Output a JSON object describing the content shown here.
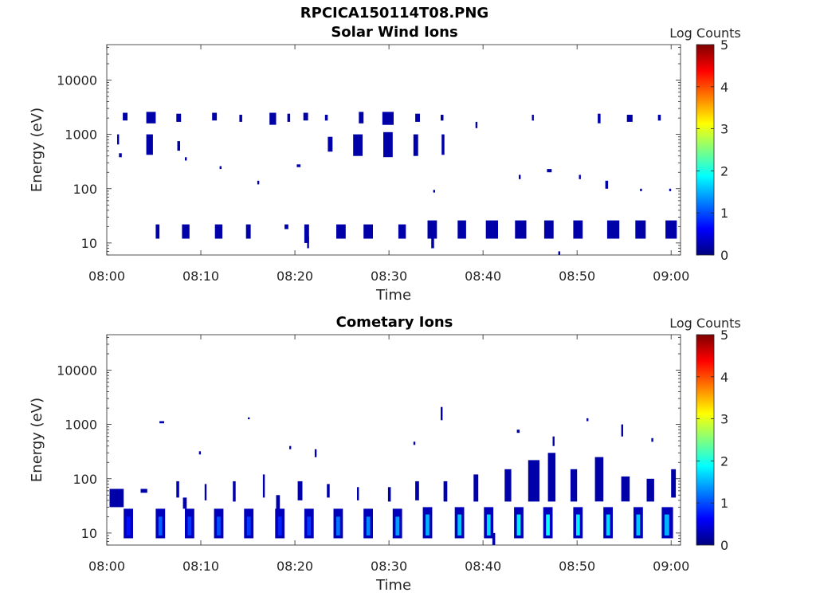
{
  "figure_title": "RPCICA150114T08.PNG",
  "colormap": [
    "#00007F",
    "#0000FF",
    "#007FFF",
    "#00FFFF",
    "#7FFF7F",
    "#FFFF00",
    "#FF7F00",
    "#FF0000",
    "#7F0000"
  ],
  "chart_data": [
    {
      "type": "heatmap",
      "title": "Solar Wind Ions",
      "xlabel": "Time",
      "ylabel": "Energy (eV)",
      "xlim": [
        "08:00",
        "09:01"
      ],
      "ylim": [
        6,
        45000
      ],
      "yscale": "log",
      "xticks": [
        "08:00",
        "08:10",
        "08:20",
        "08:30",
        "08:40",
        "08:50",
        "09:00"
      ],
      "yticks": [
        10,
        100,
        1000,
        10000
      ],
      "yticklabels": [
        "10",
        "100",
        "1000",
        "10000"
      ],
      "colorbar": {
        "label": "Log Counts",
        "range": [
          0,
          5
        ],
        "ticks": [
          "0",
          "1",
          "2",
          "3",
          "4",
          "5"
        ]
      },
      "cells": [
        [
          1.7,
          2.2,
          1800,
          2500,
          0.2
        ],
        [
          4.2,
          5.2,
          1600,
          2600,
          0.2
        ],
        [
          7.4,
          7.9,
          1700,
          2400,
          0.2
        ],
        [
          11.2,
          11.7,
          1800,
          2500,
          0.2
        ],
        [
          14.1,
          14.4,
          1700,
          2300,
          0.2
        ],
        [
          17.3,
          18.0,
          1500,
          2500,
          0.2
        ],
        [
          19.2,
          19.5,
          1700,
          2400,
          0.2
        ],
        [
          20.9,
          21.4,
          1800,
          2500,
          0.2
        ],
        [
          23.2,
          23.5,
          1800,
          2300,
          0.2
        ],
        [
          26.8,
          27.3,
          1600,
          2600,
          0.2
        ],
        [
          29.3,
          30.5,
          1500,
          2600,
          0.2
        ],
        [
          32.8,
          33.3,
          1700,
          2400,
          0.2
        ],
        [
          35.5,
          35.8,
          1800,
          2300,
          0.2
        ],
        [
          39.2,
          39.4,
          1300,
          1700,
          0.2
        ],
        [
          45.2,
          45.4,
          1800,
          2300,
          0.2
        ],
        [
          52.2,
          52.5,
          1600,
          2400,
          0.2
        ],
        [
          55.3,
          55.9,
          1700,
          2300,
          0.2
        ],
        [
          58.6,
          58.9,
          1800,
          2300,
          0.2
        ],
        [
          1.1,
          1.3,
          650,
          1000,
          0.2
        ],
        [
          4.2,
          4.9,
          420,
          1000,
          0.2
        ],
        [
          7.5,
          7.8,
          500,
          750,
          0.2
        ],
        [
          23.5,
          24.0,
          480,
          900,
          0.2
        ],
        [
          26.2,
          27.2,
          400,
          1000,
          0.2
        ],
        [
          29.4,
          30.4,
          380,
          1100,
          0.2
        ],
        [
          32.6,
          33.1,
          400,
          1000,
          0.2
        ],
        [
          35.6,
          35.9,
          420,
          1000,
          0.2
        ],
        [
          5.2,
          5.6,
          12,
          22,
          0.2
        ],
        [
          8.0,
          8.8,
          12,
          22,
          0.2
        ],
        [
          11.5,
          12.3,
          12,
          22,
          0.2
        ],
        [
          14.8,
          15.3,
          12,
          22,
          0.2
        ],
        [
          18.9,
          19.3,
          18,
          22,
          0.2
        ],
        [
          21.0,
          21.5,
          10,
          22,
          0.2
        ],
        [
          24.4,
          25.4,
          12,
          22,
          0.2
        ],
        [
          27.3,
          28.3,
          12,
          22,
          0.2
        ],
        [
          31.0,
          31.8,
          12,
          22,
          0.2
        ],
        [
          34.1,
          35.1,
          12,
          26,
          0.2
        ],
        [
          37.3,
          38.2,
          12,
          26,
          0.2
        ],
        [
          40.3,
          41.6,
          12,
          26,
          0.2
        ],
        [
          43.4,
          44.6,
          12,
          26,
          0.2
        ],
        [
          46.5,
          47.5,
          12,
          26,
          0.2
        ],
        [
          49.6,
          50.6,
          12,
          26,
          0.2
        ],
        [
          53.2,
          54.5,
          12,
          26,
          0.2
        ],
        [
          56.2,
          57.3,
          12,
          26,
          0.2
        ],
        [
          59.4,
          60.6,
          12,
          26,
          0.2
        ],
        [
          21.3,
          21.5,
          8,
          13,
          0.2
        ],
        [
          34.5,
          34.8,
          8,
          12,
          0.2
        ],
        [
          48.0,
          48.2,
          6,
          7,
          0.2
        ],
        [
          1.3,
          1.6,
          380,
          450,
          0.2
        ],
        [
          8.3,
          8.5,
          330,
          380,
          0.2
        ],
        [
          12.0,
          12.2,
          230,
          260,
          0.2
        ],
        [
          16.0,
          16.2,
          120,
          140,
          0.2
        ],
        [
          20.2,
          20.6,
          250,
          280,
          0.2
        ],
        [
          34.7,
          34.9,
          85,
          95,
          0.2
        ],
        [
          43.8,
          44.0,
          150,
          180,
          0.2
        ],
        [
          46.8,
          47.3,
          200,
          230,
          0.2
        ],
        [
          50.2,
          50.4,
          150,
          180,
          0.2
        ],
        [
          53.0,
          53.3,
          100,
          140,
          0.2
        ],
        [
          56.7,
          56.9,
          90,
          100,
          0.2
        ],
        [
          59.8,
          60.0,
          90,
          100,
          0.2
        ]
      ]
    },
    {
      "type": "heatmap",
      "title": "Cometary Ions",
      "xlabel": "Time",
      "ylabel": "Energy (eV)",
      "xlim": [
        "08:00",
        "09:01"
      ],
      "ylim": [
        6,
        45000
      ],
      "yscale": "log",
      "xticks": [
        "08:00",
        "08:10",
        "08:20",
        "08:30",
        "08:40",
        "08:50",
        "09:00"
      ],
      "yticks": [
        10,
        100,
        1000,
        10000
      ],
      "yticklabels": [
        "10",
        "100",
        "1000",
        "10000"
      ],
      "colorbar": {
        "label": "Log Counts",
        "range": [
          0,
          5
        ],
        "ticks": [
          "0",
          "1",
          "2",
          "3",
          "4",
          "5"
        ]
      },
      "cells": [
        [
          1.8,
          2.8,
          8,
          28,
          0.3
        ],
        [
          2.1,
          2.5,
          9,
          20,
          0.7
        ],
        [
          5.2,
          6.2,
          8,
          28,
          0.3
        ],
        [
          5.5,
          5.9,
          9,
          20,
          1.1
        ],
        [
          8.3,
          9.3,
          8,
          28,
          0.3
        ],
        [
          8.6,
          9.0,
          9,
          20,
          0.9
        ],
        [
          11.4,
          12.4,
          8,
          28,
          0.3
        ],
        [
          11.7,
          12.1,
          9,
          20,
          1.0
        ],
        [
          14.6,
          15.6,
          8,
          28,
          0.3
        ],
        [
          14.9,
          15.3,
          9,
          20,
          0.9
        ],
        [
          17.9,
          18.9,
          8,
          28,
          0.3
        ],
        [
          18.2,
          18.6,
          9,
          20,
          0.8
        ],
        [
          21.0,
          22.0,
          8,
          28,
          0.3
        ],
        [
          21.3,
          21.7,
          9,
          20,
          0.9
        ],
        [
          24.1,
          25.1,
          8,
          28,
          0.3
        ],
        [
          24.4,
          24.8,
          9,
          20,
          1.2
        ],
        [
          27.3,
          28.3,
          8,
          28,
          0.3
        ],
        [
          27.6,
          28.0,
          9,
          20,
          1.3
        ],
        [
          30.4,
          31.4,
          8,
          28,
          0.3
        ],
        [
          30.7,
          31.1,
          9,
          20,
          1.4
        ],
        [
          33.6,
          34.6,
          8,
          30,
          0.3
        ],
        [
          33.9,
          34.3,
          9,
          22,
          1.5
        ],
        [
          37.0,
          38.0,
          8,
          30,
          0.3
        ],
        [
          37.3,
          37.7,
          9,
          22,
          1.6
        ],
        [
          40.1,
          41.1,
          8,
          30,
          0.3
        ],
        [
          40.4,
          40.8,
          9,
          22,
          1.7
        ],
        [
          43.3,
          44.3,
          8,
          30,
          0.3
        ],
        [
          43.6,
          44.0,
          9,
          22,
          1.8
        ],
        [
          46.4,
          47.4,
          8,
          30,
          0.3
        ],
        [
          46.7,
          47.1,
          9,
          22,
          1.9
        ],
        [
          49.6,
          50.6,
          8,
          30,
          0.3
        ],
        [
          49.9,
          50.3,
          9,
          22,
          1.8
        ],
        [
          52.8,
          53.8,
          8,
          30,
          0.3
        ],
        [
          53.1,
          53.5,
          9,
          22,
          1.7
        ],
        [
          56.0,
          57.0,
          8,
          30,
          0.3
        ],
        [
          56.3,
          56.7,
          9,
          22,
          1.6
        ],
        [
          59.0,
          60.2,
          8,
          30,
          0.3
        ],
        [
          59.3,
          59.8,
          9,
          22,
          1.5
        ],
        [
          0.3,
          1.8,
          30,
          65,
          0.2
        ],
        [
          3.6,
          4.3,
          55,
          65,
          0.2
        ],
        [
          7.4,
          7.7,
          45,
          90,
          0.2
        ],
        [
          10.4,
          10.6,
          40,
          80,
          0.2
        ],
        [
          13.4,
          13.7,
          38,
          90,
          0.2
        ],
        [
          16.6,
          16.8,
          45,
          120,
          0.2
        ],
        [
          20.3,
          20.8,
          40,
          90,
          0.2
        ],
        [
          23.4,
          23.7,
          45,
          80,
          0.2
        ],
        [
          26.6,
          26.8,
          40,
          70,
          0.2
        ],
        [
          29.9,
          30.2,
          38,
          70,
          0.2
        ],
        [
          32.8,
          33.2,
          40,
          90,
          0.2
        ],
        [
          35.8,
          36.2,
          38,
          90,
          0.2
        ],
        [
          39.0,
          39.5,
          38,
          120,
          0.2
        ],
        [
          42.3,
          43.0,
          38,
          150,
          0.2
        ],
        [
          44.8,
          46.0,
          38,
          220,
          0.2
        ],
        [
          46.9,
          47.7,
          38,
          300,
          0.2
        ],
        [
          49.3,
          50.0,
          38,
          150,
          0.2
        ],
        [
          51.9,
          52.8,
          38,
          250,
          0.2
        ],
        [
          54.7,
          55.6,
          38,
          110,
          0.2
        ],
        [
          57.4,
          58.2,
          38,
          100,
          0.2
        ],
        [
          60.0,
          60.5,
          45,
          150,
          0.2
        ],
        [
          8.1,
          8.5,
          28,
          45,
          0.2
        ],
        [
          18.0,
          18.4,
          28,
          50,
          0.2
        ],
        [
          41.0,
          41.3,
          6,
          10,
          0.2
        ],
        [
          5.6,
          6.1,
          1050,
          1150,
          0.2
        ],
        [
          9.8,
          10.0,
          280,
          320,
          0.2
        ],
        [
          15.0,
          15.2,
          1250,
          1350,
          0.2
        ],
        [
          19.4,
          19.6,
          350,
          400,
          0.2
        ],
        [
          22.1,
          22.3,
          250,
          350,
          0.2
        ],
        [
          32.6,
          32.8,
          420,
          480,
          0.2
        ],
        [
          35.5,
          35.7,
          1200,
          2100,
          0.2
        ],
        [
          43.6,
          43.9,
          700,
          800,
          0.2
        ],
        [
          47.4,
          47.6,
          400,
          600,
          0.2
        ],
        [
          51.0,
          51.2,
          1150,
          1300,
          0.2
        ],
        [
          54.7,
          54.9,
          600,
          1000,
          0.2
        ],
        [
          57.9,
          58.1,
          480,
          560,
          0.2
        ]
      ]
    }
  ]
}
